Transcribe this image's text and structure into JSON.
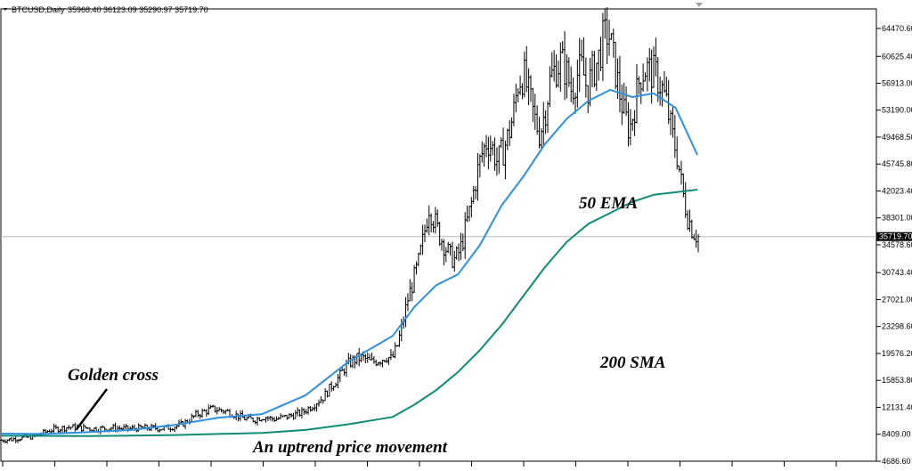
{
  "header": {
    "symbol": "BTCUSD,Daily",
    "ohlc": "35968.40 36123.09 35290.97 35719.70"
  },
  "current_price_label": "35719.70",
  "chart_data": {
    "type": "line",
    "title": "",
    "ylim": [
      4686.6,
      66500
    ],
    "y_ticks": [
      "64470.60",
      "60625.40",
      "56913.00",
      "53190.00",
      "49468.50",
      "45745.80",
      "42023.40",
      "38301.00",
      "34578.60",
      "30743.40",
      "27021.00",
      "23298.60",
      "19576.20",
      "15853.80",
      "12131.40",
      "8409.00",
      "4686.60"
    ],
    "current_price": 35719.7,
    "price_series": {
      "x_start": 1,
      "x_end": 130,
      "closes": [
        7600,
        7650,
        7700,
        7850,
        7900,
        8000,
        8100,
        8300,
        8600,
        8900,
        9100,
        9200,
        9300,
        9400,
        9350,
        9250,
        9300,
        9200,
        9150,
        9200,
        9250,
        9300,
        9250,
        9200,
        9150,
        9200,
        9250,
        9300,
        9250,
        9300,
        9200,
        9300,
        9350,
        9500,
        9700,
        10100,
        10600,
        11100,
        11400,
        11700,
        11900,
        11800,
        11700,
        11500,
        11200,
        10900,
        10600,
        10500,
        10400,
        10700,
        10800,
        10600,
        10500,
        10700,
        10800,
        11000,
        11200,
        11400,
        11900,
        12400,
        13000,
        13500,
        14500,
        15500,
        16300,
        17500,
        18300,
        18700,
        19000,
        18800,
        18300,
        18600,
        18800,
        19200,
        18700,
        20600,
        23500,
        27000,
        29500,
        32000,
        35500,
        40000,
        38000,
        36000,
        34500,
        33000,
        32500,
        34000,
        37000,
        40000,
        44000,
        47000,
        49000,
        48000,
        46000,
        47500,
        49500,
        52500,
        57500,
        58000,
        55000,
        52000,
        50000,
        53000,
        57500,
        59000,
        60000,
        58500,
        56000,
        58000,
        59000,
        56000,
        58500,
        60000,
        63000,
        64000,
        60000,
        56000,
        52500,
        50500,
        54000,
        58000,
        59000,
        58500,
        58000,
        56500,
        54000,
        50000,
        47000,
        42000,
        38500,
        36500,
        35700
      ],
      "noise_amplitude": 0.045
    },
    "series": [
      {
        "name": "50 EMA",
        "color": "#2f8fe0",
        "points": [
          [
            0,
            8500
          ],
          [
            10,
            8450
          ],
          [
            20,
            8700
          ],
          [
            30,
            9000
          ],
          [
            40,
            9700
          ],
          [
            50,
            10700
          ],
          [
            60,
            11200
          ],
          [
            70,
            13800
          ],
          [
            80,
            18500
          ],
          [
            90,
            22000
          ],
          [
            95,
            26000
          ],
          [
            100,
            29000
          ],
          [
            105,
            30500
          ],
          [
            110,
            34500
          ],
          [
            115,
            40000
          ],
          [
            120,
            44000
          ],
          [
            125,
            48500
          ],
          [
            130,
            52000
          ],
          [
            135,
            54500
          ],
          [
            140,
            56000
          ],
          [
            145,
            55000
          ],
          [
            150,
            55500
          ],
          [
            155,
            53500
          ],
          [
            160,
            47000
          ]
        ]
      },
      {
        "name": "200 SMA",
        "color": "#0e8c76",
        "points": [
          [
            0,
            8200
          ],
          [
            20,
            8150
          ],
          [
            40,
            8300
          ],
          [
            60,
            8600
          ],
          [
            70,
            9000
          ],
          [
            80,
            9800
          ],
          [
            90,
            10800
          ],
          [
            95,
            12500
          ],
          [
            100,
            14500
          ],
          [
            105,
            17000
          ],
          [
            110,
            20000
          ],
          [
            115,
            23500
          ],
          [
            120,
            27500
          ],
          [
            125,
            31500
          ],
          [
            130,
            35000
          ],
          [
            135,
            37500
          ],
          [
            140,
            39000
          ],
          [
            145,
            40500
          ],
          [
            150,
            41500
          ],
          [
            160,
            42200
          ]
        ]
      }
    ],
    "annotations": {
      "golden_cross": "Golden cross",
      "ema50": "50 EMA",
      "sma200": "200 SMA",
      "uptrend": "An uptrend price movement"
    }
  }
}
